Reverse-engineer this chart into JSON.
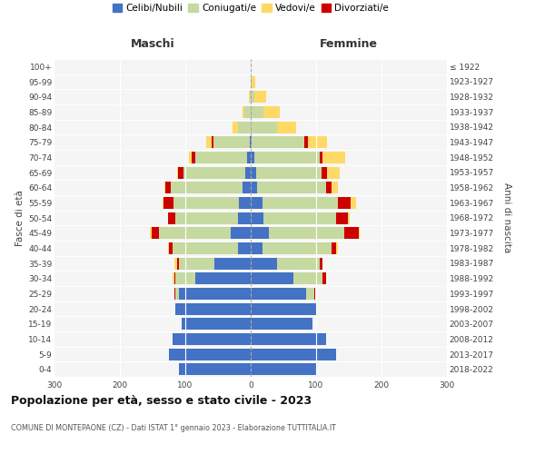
{
  "age_groups": [
    "0-4",
    "5-9",
    "10-14",
    "15-19",
    "20-24",
    "25-29",
    "30-34",
    "35-39",
    "40-44",
    "45-49",
    "50-54",
    "55-59",
    "60-64",
    "65-69",
    "70-74",
    "75-79",
    "80-84",
    "85-89",
    "90-94",
    "95-99",
    "100+"
  ],
  "birth_years": [
    "2018-2022",
    "2013-2017",
    "2008-2012",
    "2003-2007",
    "1998-2002",
    "1993-1997",
    "1988-1992",
    "1983-1987",
    "1978-1982",
    "1973-1977",
    "1968-1972",
    "1963-1967",
    "1958-1962",
    "1953-1957",
    "1948-1952",
    "1943-1947",
    "1938-1942",
    "1933-1937",
    "1928-1932",
    "1923-1927",
    "≤ 1922"
  ],
  "maschi": {
    "celibi": [
      110,
      125,
      120,
      105,
      115,
      110,
      85,
      55,
      20,
      30,
      20,
      18,
      12,
      8,
      5,
      2,
      0,
      0,
      0,
      0,
      0
    ],
    "coniugati": [
      0,
      0,
      0,
      0,
      0,
      5,
      30,
      55,
      100,
      110,
      95,
      100,
      110,
      95,
      80,
      55,
      20,
      10,
      2,
      0,
      0
    ],
    "vedovi": [
      0,
      0,
      0,
      0,
      0,
      0,
      2,
      3,
      2,
      2,
      0,
      2,
      2,
      2,
      5,
      8,
      8,
      3,
      1,
      0,
      0
    ],
    "divorziati": [
      0,
      0,
      0,
      0,
      0,
      2,
      2,
      3,
      5,
      12,
      12,
      15,
      8,
      8,
      5,
      3,
      0,
      0,
      0,
      0,
      0
    ]
  },
  "femmine": {
    "nubili": [
      100,
      130,
      115,
      95,
      100,
      85,
      65,
      40,
      18,
      28,
      20,
      18,
      10,
      8,
      5,
      2,
      0,
      0,
      0,
      0,
      0
    ],
    "coniugate": [
      0,
      0,
      0,
      0,
      0,
      12,
      45,
      65,
      105,
      115,
      110,
      115,
      105,
      100,
      100,
      80,
      40,
      20,
      6,
      2,
      0
    ],
    "vedove": [
      0,
      0,
      0,
      0,
      0,
      0,
      0,
      0,
      2,
      2,
      3,
      8,
      10,
      20,
      35,
      30,
      30,
      25,
      18,
      5,
      0
    ],
    "divorziate": [
      0,
      0,
      0,
      0,
      0,
      2,
      5,
      5,
      8,
      22,
      18,
      20,
      8,
      8,
      5,
      5,
      0,
      0,
      0,
      0,
      0
    ]
  },
  "colors": {
    "celibi": "#4472c4",
    "coniugati": "#c5d9a0",
    "vedovi": "#ffd966",
    "divorziati": "#cc0000"
  },
  "legend_labels": [
    "Celibi/Nubili",
    "Coniugati/e",
    "Vedovi/e",
    "Divorziati/e"
  ],
  "title": "Popolazione per età, sesso e stato civile - 2023",
  "subtitle": "COMUNE DI MONTEPAONE (CZ) - Dati ISTAT 1° gennaio 2023 - Elaborazione TUTTITALIA.IT",
  "label_maschi": "Maschi",
  "label_femmine": "Femmine",
  "ylabel_left": "Fasce di età",
  "ylabel_right": "Anni di nascita",
  "xlim": 300,
  "bg_color": "#f5f5f5",
  "fig_color": "#ffffff"
}
